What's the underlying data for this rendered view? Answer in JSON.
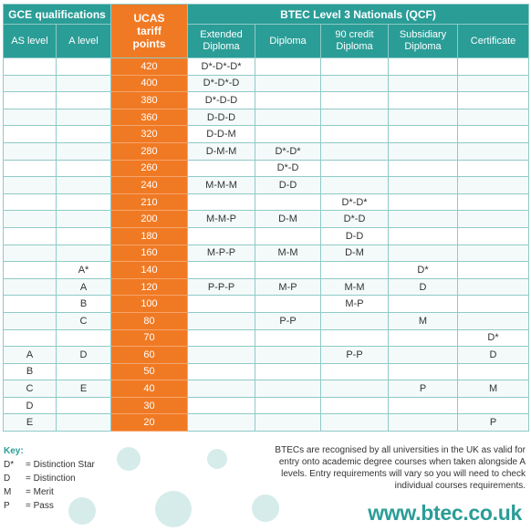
{
  "headers": {
    "gce": "GCE qualifications",
    "ucas_l1": "UCAS",
    "ucas_l2": "tariff",
    "ucas_l3": "points",
    "btec": "BTEC Level 3 Nationals (QCF)",
    "as_level": "AS level",
    "a_level": "A level",
    "extended_l1": "Extended",
    "extended_l2": "Diploma",
    "diploma": "Diploma",
    "credit90_l1": "90 credit",
    "credit90_l2": "Diploma",
    "subsidiary_l1": "Subsidiary",
    "subsidiary_l2": "Diploma",
    "certificate": "Certificate"
  },
  "rows": [
    {
      "as": "",
      "a": "",
      "ucas": "420",
      "ext": "D*-D*-D*",
      "dip": "",
      "c90": "",
      "sub": "",
      "cert": ""
    },
    {
      "as": "",
      "a": "",
      "ucas": "400",
      "ext": "D*-D*-D",
      "dip": "",
      "c90": "",
      "sub": "",
      "cert": ""
    },
    {
      "as": "",
      "a": "",
      "ucas": "380",
      "ext": "D*-D-D",
      "dip": "",
      "c90": "",
      "sub": "",
      "cert": ""
    },
    {
      "as": "",
      "a": "",
      "ucas": "360",
      "ext": "D-D-D",
      "dip": "",
      "c90": "",
      "sub": "",
      "cert": ""
    },
    {
      "as": "",
      "a": "",
      "ucas": "320",
      "ext": "D-D-M",
      "dip": "",
      "c90": "",
      "sub": "",
      "cert": ""
    },
    {
      "as": "",
      "a": "",
      "ucas": "280",
      "ext": "D-M-M",
      "dip": "D*-D*",
      "c90": "",
      "sub": "",
      "cert": ""
    },
    {
      "as": "",
      "a": "",
      "ucas": "260",
      "ext": "",
      "dip": "D*-D",
      "c90": "",
      "sub": "",
      "cert": ""
    },
    {
      "as": "",
      "a": "",
      "ucas": "240",
      "ext": "M-M-M",
      "dip": "D-D",
      "c90": "",
      "sub": "",
      "cert": ""
    },
    {
      "as": "",
      "a": "",
      "ucas": "210",
      "ext": "",
      "dip": "",
      "c90": "D*-D*",
      "sub": "",
      "cert": ""
    },
    {
      "as": "",
      "a": "",
      "ucas": "200",
      "ext": "M-M-P",
      "dip": "D-M",
      "c90": "D*-D",
      "sub": "",
      "cert": ""
    },
    {
      "as": "",
      "a": "",
      "ucas": "180",
      "ext": "",
      "dip": "",
      "c90": "D-D",
      "sub": "",
      "cert": ""
    },
    {
      "as": "",
      "a": "",
      "ucas": "160",
      "ext": "M-P-P",
      "dip": "M-M",
      "c90": "D-M",
      "sub": "",
      "cert": ""
    },
    {
      "as": "",
      "a": "A*",
      "ucas": "140",
      "ext": "",
      "dip": "",
      "c90": "",
      "sub": "D*",
      "cert": ""
    },
    {
      "as": "",
      "a": "A",
      "ucas": "120",
      "ext": "P-P-P",
      "dip": "M-P",
      "c90": "M-M",
      "sub": "D",
      "cert": ""
    },
    {
      "as": "",
      "a": "B",
      "ucas": "100",
      "ext": "",
      "dip": "",
      "c90": "M-P",
      "sub": "",
      "cert": ""
    },
    {
      "as": "",
      "a": "C",
      "ucas": "80",
      "ext": "",
      "dip": "P-P",
      "c90": "",
      "sub": "M",
      "cert": ""
    },
    {
      "as": "",
      "a": "",
      "ucas": "70",
      "ext": "",
      "dip": "",
      "c90": "",
      "sub": "",
      "cert": "D*"
    },
    {
      "as": "A",
      "a": "D",
      "ucas": "60",
      "ext": "",
      "dip": "",
      "c90": "P-P",
      "sub": "",
      "cert": "D"
    },
    {
      "as": "B",
      "a": "",
      "ucas": "50",
      "ext": "",
      "dip": "",
      "c90": "",
      "sub": "",
      "cert": ""
    },
    {
      "as": "C",
      "a": "E",
      "ucas": "40",
      "ext": "",
      "dip": "",
      "c90": "",
      "sub": "P",
      "cert": "M"
    },
    {
      "as": "D",
      "a": "",
      "ucas": "30",
      "ext": "",
      "dip": "",
      "c90": "",
      "sub": "",
      "cert": ""
    },
    {
      "as": "E",
      "a": "",
      "ucas": "20",
      "ext": "",
      "dip": "",
      "c90": "",
      "sub": "",
      "cert": "P"
    }
  ],
  "key": {
    "title": "Key:",
    "items": [
      {
        "code": "D*",
        "text": "= Distinction Star"
      },
      {
        "code": "D",
        "text": "= Distinction"
      },
      {
        "code": "M",
        "text": "= Merit"
      },
      {
        "code": "P",
        "text": "= Pass"
      }
    ]
  },
  "note": "BTECs are recognised by all universities in the UK as valid for entry onto academic degree courses when taken alongside A levels. Entry requirements will vary so you will need to check individual courses requirements.",
  "website": "www.btec.co.uk",
  "colors": {
    "teal": "#2a9d97",
    "orange": "#f07a24",
    "border": "#8fcac6"
  }
}
